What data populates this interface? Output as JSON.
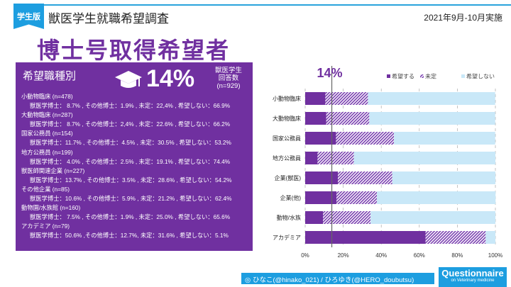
{
  "header": {
    "badge": "学生版",
    "title": "獣医学生就職希望調査",
    "date": "2021年9月-10月実施",
    "main_title": "博士号取得希望者"
  },
  "panel": {
    "title": "希望職種別",
    "percent": "14%",
    "resp_l1": "獣医学生",
    "resp_l2": "回答数",
    "resp_l3": "(n=929)",
    "items": [
      {
        "name": "小動物臨床 (n=478)",
        "detail": "獣医学博士： 8.7%  , その他博士：1.9% , 未定：22,4% , 希望しない：66.9%"
      },
      {
        "name": "大動物臨床 (n=287)",
        "detail": "獣医学博士： 8.7%  , その他博士：2,4% , 未定：22.6% , 希望しない：66.2%"
      },
      {
        "name": "国家公務員 (n=154)",
        "detail": "獣医学博士：11.7% , その他博士：4.5% , 未定：30.5% , 希望しない：53.2%"
      },
      {
        "name": "地方公務員 (n=199)",
        "detail": "獣医学博士： 4.0%  , その他博士：2.5% , 未定：19.1% , 希望しない：74.4%"
      },
      {
        "name": "獣医師関連企業 (n=227)",
        "detail": "獣医学博士：13.7% , その他博士：3.5% , 未定：28.6% , 希望しない：54.2%"
      },
      {
        "name": "その他企業 (n=85)",
        "detail": "獣医学博士：10.6% , その他博士：5.9% , 未定：21.2% , 希望しない：62.4%"
      },
      {
        "name": "動物園/水族館 (n=160)",
        "detail": "獣医学博士： 7.5%  , その他博士：1.9% , 未定：25.0% , 希望しない：65.6%"
      },
      {
        "name": "アカデミア (n=79)",
        "detail": "獣医学博士：50.6% ,その他博士：12.7%, 未定：31.6% , 希望しない：5.1%"
      }
    ]
  },
  "chart_data": {
    "type": "bar",
    "stacked": true,
    "orientation": "horizontal",
    "categories": [
      "小動物臨床",
      "大動物臨床",
      "国家公務員",
      "地方公務員",
      "企業(獣医)",
      "企業(他)",
      "動物/水族",
      "アカデミア"
    ],
    "series": [
      {
        "name": "希望する",
        "color": "#7030a0",
        "values": [
          10.6,
          11.1,
          16.2,
          6.5,
          17.2,
          16.5,
          9.4,
          63.3
        ]
      },
      {
        "name": "未定",
        "color": "#9b59c9",
        "values": [
          22.4,
          22.6,
          30.5,
          19.1,
          28.6,
          21.2,
          25.0,
          31.6
        ]
      },
      {
        "name": "希望しない",
        "color": "#c9e8f8",
        "values": [
          66.9,
          66.2,
          53.2,
          74.4,
          54.2,
          62.4,
          65.6,
          5.1
        ]
      }
    ],
    "xticks": [
      "0%",
      "20%",
      "40%",
      "60%",
      "80%",
      "100%"
    ],
    "xlim": [
      0,
      100
    ],
    "reference_line": {
      "value": 14,
      "label": "14%"
    },
    "legend": "top-right"
  },
  "footer": {
    "text": "ひなこ(@hinako_021)  /  ひろゆき(@HERO_doubutsu)",
    "q_title": "Questionnaire",
    "q_sub": "on Veterinary medicine"
  }
}
